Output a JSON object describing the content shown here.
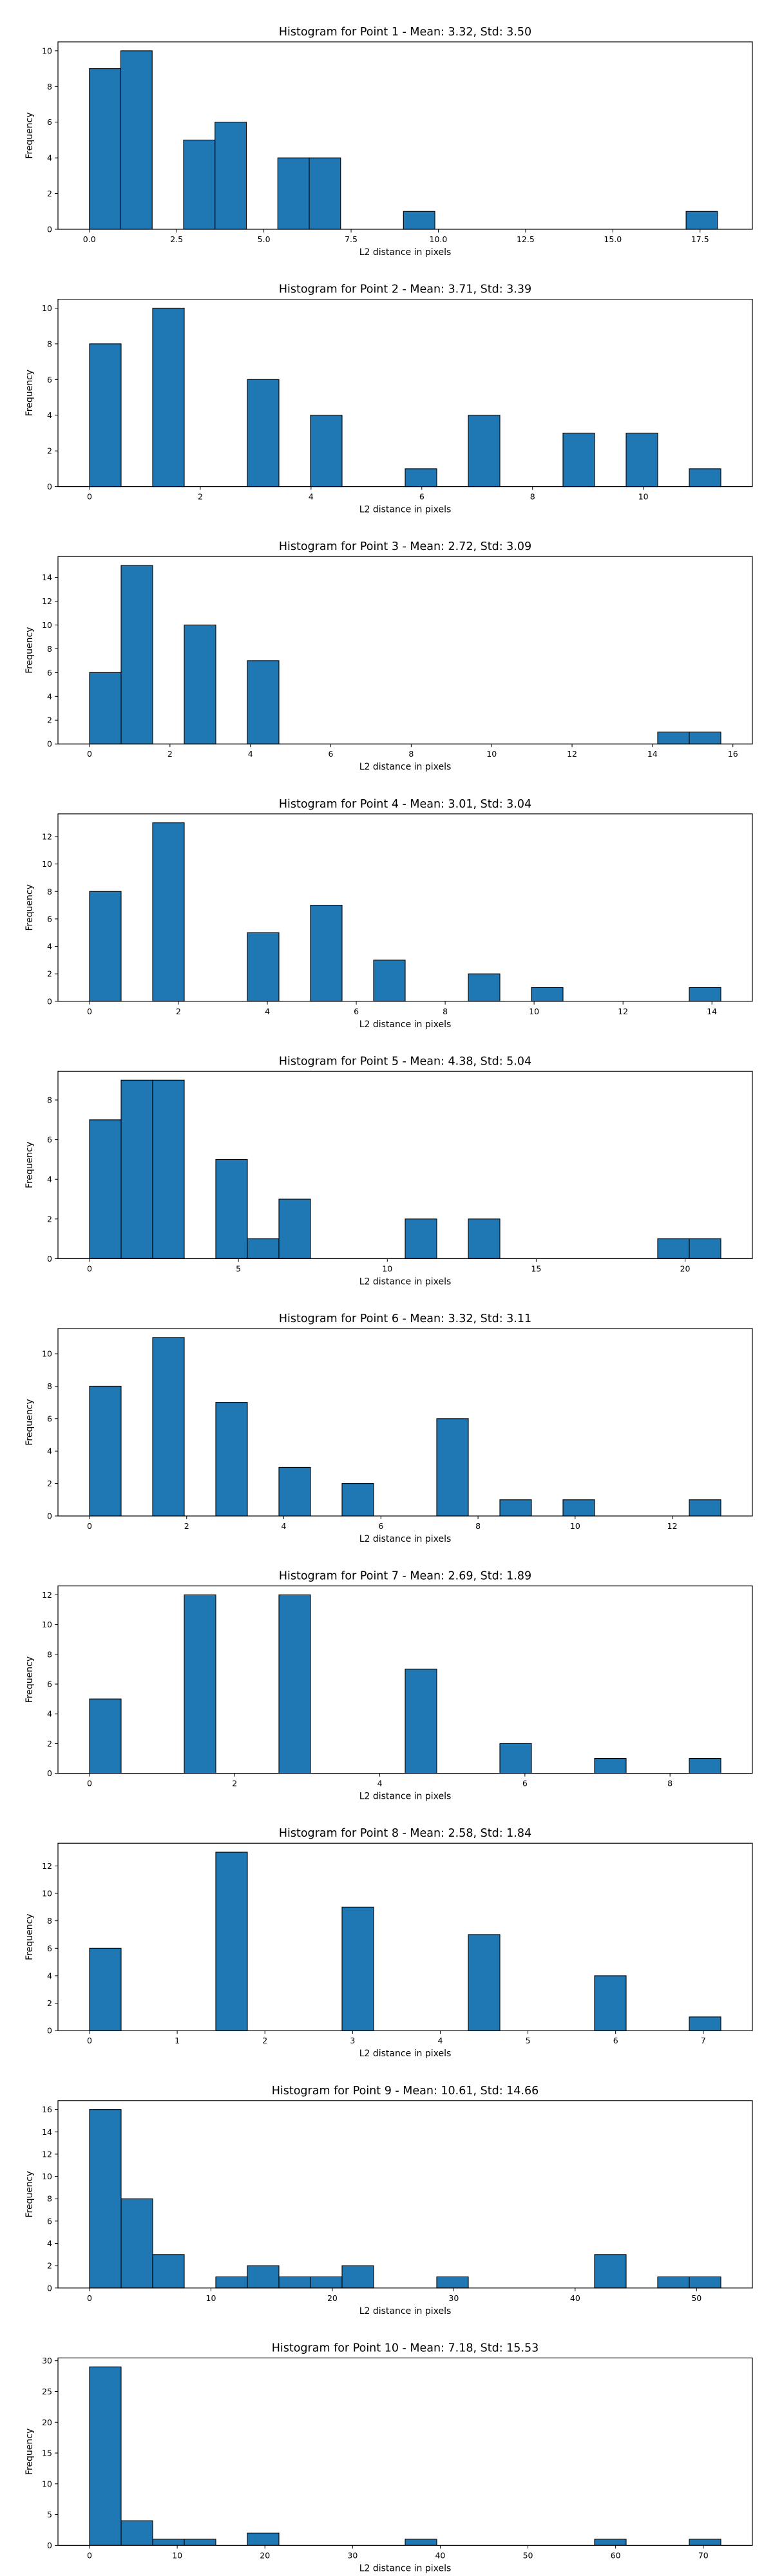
{
  "chart_data": [
    {
      "type": "bar",
      "title": "Histogram for Point 1 - Mean: 3.32, Std: 3.50",
      "xlabel": "L2 distance in pixels",
      "ylabel": "Frequency",
      "grid": false,
      "bin_start": 0.0,
      "bin_width": 0.9,
      "counts": [
        9,
        10,
        0,
        5,
        6,
        0,
        4,
        4,
        0,
        0,
        1,
        0,
        0,
        0,
        0,
        0,
        0,
        0,
        0,
        1
      ],
      "xlim": [
        -0.9,
        19.0
      ],
      "ylim": [
        0,
        10.5
      ],
      "xticks": [
        0.0,
        2.5,
        5.0,
        7.5,
        10.0,
        12.5,
        15.0,
        17.5
      ],
      "xtick_labels": [
        "0.0",
        "2.5",
        "5.0",
        "7.5",
        "10.0",
        "12.5",
        "15.0",
        "17.5"
      ],
      "yticks": [
        0,
        2,
        4,
        6,
        8,
        10
      ],
      "ytick_labels": [
        "0",
        "2",
        "4",
        "6",
        "8",
        "10"
      ]
    },
    {
      "type": "bar",
      "title": "Histogram for Point 2 - Mean: 3.71, Std: 3.39",
      "xlabel": "L2 distance in pixels",
      "ylabel": "Frequency",
      "grid": false,
      "bin_start": 0.0,
      "bin_width": 0.57,
      "counts": [
        8,
        0,
        10,
        0,
        0,
        6,
        0,
        4,
        0,
        0,
        1,
        0,
        4,
        0,
        0,
        3,
        0,
        3,
        0,
        1
      ],
      "xlim": [
        -0.57,
        11.97
      ],
      "ylim": [
        0,
        10.5
      ],
      "xticks": [
        0,
        2,
        4,
        6,
        8,
        10
      ],
      "xtick_labels": [
        "0",
        "2",
        "4",
        "6",
        "8",
        "10"
      ],
      "yticks": [
        0,
        2,
        4,
        6,
        8,
        10
      ],
      "ytick_labels": [
        "0",
        "2",
        "4",
        "6",
        "8",
        "10"
      ]
    },
    {
      "type": "bar",
      "title": "Histogram for Point 3 - Mean: 2.72, Std: 3.09",
      "xlabel": "L2 distance in pixels",
      "ylabel": "Frequency",
      "grid": false,
      "bin_start": 0.0,
      "bin_width": 0.785,
      "counts": [
        6,
        15,
        0,
        10,
        0,
        7,
        0,
        0,
        0,
        0,
        0,
        0,
        0,
        0,
        0,
        0,
        0,
        0,
        1,
        1
      ],
      "xlim": [
        -0.785,
        16.485
      ],
      "ylim": [
        0,
        15.75
      ],
      "xticks": [
        0,
        2,
        4,
        6,
        8,
        10,
        12,
        14,
        16
      ],
      "xtick_labels": [
        "0",
        "2",
        "4",
        "6",
        "8",
        "10",
        "12",
        "14",
        "16"
      ],
      "yticks": [
        0,
        2,
        4,
        6,
        8,
        10,
        12,
        14
      ],
      "ytick_labels": [
        "0",
        "2",
        "4",
        "6",
        "8",
        "10",
        "12",
        "14"
      ]
    },
    {
      "type": "bar",
      "title": "Histogram for Point 4 - Mean: 3.01, Std: 3.04",
      "xlabel": "L2 distance in pixels",
      "ylabel": "Frequency",
      "grid": false,
      "bin_start": 0.0,
      "bin_width": 0.71,
      "counts": [
        8,
        0,
        13,
        0,
        0,
        5,
        0,
        7,
        0,
        3,
        0,
        0,
        2,
        0,
        1,
        0,
        0,
        0,
        0,
        1
      ],
      "xlim": [
        -0.71,
        14.91
      ],
      "ylim": [
        0,
        13.65
      ],
      "xticks": [
        0,
        2,
        4,
        6,
        8,
        10,
        12,
        14
      ],
      "xtick_labels": [
        "0",
        "2",
        "4",
        "6",
        "8",
        "10",
        "12",
        "14"
      ],
      "yticks": [
        0,
        2,
        4,
        6,
        8,
        10,
        12
      ],
      "ytick_labels": [
        "0",
        "2",
        "4",
        "6",
        "8",
        "10",
        "12"
      ]
    },
    {
      "type": "bar",
      "title": "Histogram for Point 5 - Mean: 4.38, Std: 5.04",
      "xlabel": "L2 distance in pixels",
      "ylabel": "Frequency",
      "grid": false,
      "bin_start": 0.0,
      "bin_width": 1.06,
      "counts": [
        7,
        9,
        9,
        0,
        5,
        1,
        3,
        0,
        0,
        0,
        2,
        0,
        2,
        0,
        0,
        0,
        0,
        0,
        1,
        1
      ],
      "xlim": [
        -1.06,
        22.26
      ],
      "ylim": [
        0,
        9.45
      ],
      "xticks": [
        0,
        5,
        10,
        15,
        20
      ],
      "xtick_labels": [
        "0",
        "5",
        "10",
        "15",
        "20"
      ],
      "yticks": [
        0,
        2,
        4,
        6,
        8
      ],
      "ytick_labels": [
        "0",
        "2",
        "4",
        "6",
        "8"
      ]
    },
    {
      "type": "bar",
      "title": "Histogram for Point 6 - Mean: 3.32, Std: 3.11",
      "xlabel": "L2 distance in pixels",
      "ylabel": "Frequency",
      "grid": false,
      "bin_start": 0.0,
      "bin_width": 0.65,
      "counts": [
        8,
        0,
        11,
        0,
        7,
        0,
        3,
        0,
        2,
        0,
        0,
        6,
        0,
        1,
        0,
        1,
        0,
        0,
        0,
        1
      ],
      "xlim": [
        -0.65,
        13.65
      ],
      "ylim": [
        0,
        11.55
      ],
      "xticks": [
        0,
        2,
        4,
        6,
        8,
        10,
        12
      ],
      "xtick_labels": [
        "0",
        "2",
        "4",
        "6",
        "8",
        "10",
        "12"
      ],
      "yticks": [
        0,
        2,
        4,
        6,
        8,
        10
      ],
      "ytick_labels": [
        "0",
        "2",
        "4",
        "6",
        "8",
        "10"
      ]
    },
    {
      "type": "bar",
      "title": "Histogram for Point 7 - Mean: 2.69, Std: 1.89",
      "xlabel": "L2 distance in pixels",
      "ylabel": "Frequency",
      "grid": false,
      "bin_start": 0.0,
      "bin_width": 0.435,
      "counts": [
        5,
        0,
        0,
        12,
        0,
        0,
        12,
        0,
        0,
        0,
        7,
        0,
        0,
        2,
        0,
        0,
        1,
        0,
        0,
        1
      ],
      "xlim": [
        -0.435,
        9.135
      ],
      "ylim": [
        0,
        12.6
      ],
      "xticks": [
        0,
        2,
        4,
        6,
        8
      ],
      "xtick_labels": [
        "0",
        "2",
        "4",
        "6",
        "8"
      ],
      "yticks": [
        0,
        2,
        4,
        6,
        8,
        10,
        12
      ],
      "ytick_labels": [
        "0",
        "2",
        "4",
        "6",
        "8",
        "10",
        "12"
      ]
    },
    {
      "type": "bar",
      "title": "Histogram for Point 8 - Mean: 2.58, Std: 1.84",
      "xlabel": "L2 distance in pixels",
      "ylabel": "Frequency",
      "grid": false,
      "bin_start": 0.0,
      "bin_width": 0.36,
      "counts": [
        6,
        0,
        0,
        0,
        13,
        0,
        0,
        0,
        9,
        0,
        0,
        0,
        7,
        0,
        0,
        0,
        4,
        0,
        0,
        1
      ],
      "xlim": [
        -0.36,
        7.56
      ],
      "ylim": [
        0,
        13.65
      ],
      "xticks": [
        0,
        1,
        2,
        3,
        4,
        5,
        6,
        7
      ],
      "xtick_labels": [
        "0",
        "1",
        "2",
        "3",
        "4",
        "5",
        "6",
        "7"
      ],
      "yticks": [
        0,
        2,
        4,
        6,
        8,
        10,
        12
      ],
      "ytick_labels": [
        "0",
        "2",
        "4",
        "6",
        "8",
        "10",
        "12"
      ]
    },
    {
      "type": "bar",
      "title": "Histogram for Point 9 - Mean: 10.61, Std: 14.66",
      "xlabel": "L2 distance in pixels",
      "ylabel": "Frequency",
      "grid": false,
      "bin_start": 0.0,
      "bin_width": 2.6,
      "counts": [
        16,
        8,
        3,
        0,
        1,
        2,
        1,
        1,
        2,
        0,
        0,
        1,
        0,
        0,
        0,
        0,
        3,
        0,
        1,
        1
      ],
      "xlim": [
        -2.6,
        54.6
      ],
      "ylim": [
        0,
        16.8
      ],
      "xticks": [
        0,
        10,
        20,
        30,
        40,
        50
      ],
      "xtick_labels": [
        "0",
        "10",
        "20",
        "30",
        "40",
        "50"
      ],
      "yticks": [
        0,
        2,
        4,
        6,
        8,
        10,
        12,
        14,
        16
      ],
      "ytick_labels": [
        "0",
        "2",
        "4",
        "6",
        "8",
        "10",
        "12",
        "14",
        "16"
      ]
    },
    {
      "type": "bar",
      "title": "Histogram for Point 10 - Mean: 7.18, Std: 15.53",
      "xlabel": "L2 distance in pixels",
      "ylabel": "Frequency",
      "grid": false,
      "bin_start": 0.0,
      "bin_width": 3.6,
      "counts": [
        29,
        4,
        1,
        1,
        0,
        2,
        0,
        0,
        0,
        0,
        1,
        0,
        0,
        0,
        0,
        0,
        1,
        0,
        0,
        1
      ],
      "xlim": [
        -3.6,
        75.6
      ],
      "ylim": [
        0,
        30.45
      ],
      "xticks": [
        0,
        10,
        20,
        30,
        40,
        50,
        60,
        70
      ],
      "xtick_labels": [
        "0",
        "10",
        "20",
        "30",
        "40",
        "50",
        "60",
        "70"
      ],
      "yticks": [
        0,
        5,
        10,
        15,
        20,
        25,
        30
      ],
      "ytick_labels": [
        "0",
        "5",
        "10",
        "15",
        "20",
        "25",
        "30"
      ]
    }
  ]
}
